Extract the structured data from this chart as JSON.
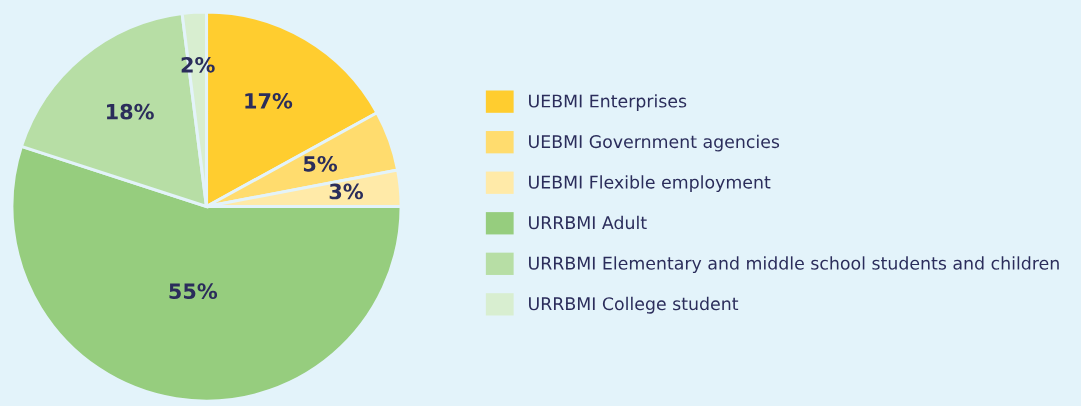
{
  "chart_data": {
    "type": "pie",
    "categories": [
      "UEBMI Enterprises",
      "UEBMI Government agencies",
      "UEBMI Flexible employment",
      "URRBMI Adult",
      "URRBMI Elementary and middle school students and children",
      "URRBMI College student"
    ],
    "values": [
      17,
      5,
      3,
      55,
      18,
      2
    ],
    "colors": [
      "#ffcd2f",
      "#ffdc6e",
      "#ffeaa8",
      "#96cd7e",
      "#b7dea5",
      "#d8eed0"
    ],
    "value_labels": [
      "17%",
      "5%",
      "3%",
      "55%",
      "18%",
      "2%"
    ],
    "legend": "right"
  }
}
